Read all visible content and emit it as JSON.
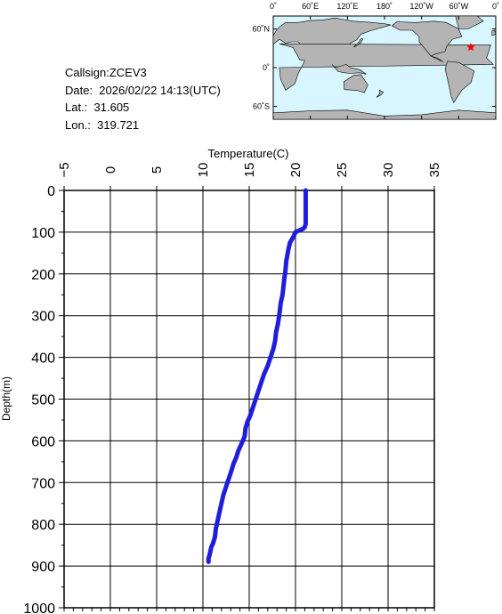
{
  "station": {
    "callsign_line": "Callsign:ZCEV3",
    "date_line": "Date:  2026/02/22 14:13(UTC)",
    "lat_line": "Lat.:  31.605",
    "lon_line": "Lon.:  319.721"
  },
  "map": {
    "lon_labels": [
      "0˚",
      "60˚E",
      "120˚E",
      "180˚",
      "120˚W",
      "60˚W",
      "0˚"
    ],
    "lat_labels": [
      "60˚N",
      "0˚",
      "60˚S"
    ],
    "ocean_color": "#d7f6ff",
    "land_color": "#b4b4b4",
    "marker_color": "#ff0000",
    "marker_lon": 319.721,
    "marker_lat": 31.605
  },
  "chart_data": {
    "type": "line",
    "title": "",
    "xlabel": "Temperature(C)",
    "ylabel": "Depth(m)",
    "xlim": [
      -5,
      35
    ],
    "ylim": [
      0,
      1000
    ],
    "x_ticks": [
      "-5",
      "0",
      "5",
      "10",
      "15",
      "20",
      "25",
      "30",
      "35"
    ],
    "y_ticks": [
      "0",
      "100",
      "200",
      "300",
      "400",
      "500",
      "600",
      "700",
      "800",
      "900",
      "1000"
    ],
    "grid": true,
    "line_color": "#1e1edc",
    "series": [
      {
        "x": [
          21.1,
          21.1,
          21.1,
          21.0,
          20.8,
          20.0,
          19.8,
          19.4,
          19.2,
          19.0,
          18.9,
          18.8,
          18.7,
          18.6,
          18.4,
          18.3,
          18.1,
          17.9,
          17.8,
          17.6,
          17.3,
          17.0,
          16.6,
          16.3,
          16.0,
          15.7,
          15.4,
          15.1,
          14.8,
          14.6,
          14.5,
          14.1,
          13.8,
          13.6,
          13.3,
          13.1,
          12.8,
          12.5,
          12.2,
          12.0,
          11.8,
          11.6,
          11.4,
          11.3,
          11.1,
          10.9,
          10.8,
          10.7,
          10.6,
          10.6
        ],
        "y": [
          0,
          40,
          80,
          88,
          92,
          100,
          110,
          125,
          145,
          170,
          195,
          210,
          230,
          250,
          270,
          290,
          320,
          340,
          360,
          380,
          400,
          420,
          440,
          460,
          480,
          500,
          520,
          540,
          555,
          570,
          590,
          610,
          625,
          640,
          655,
          670,
          690,
          710,
          730,
          750,
          770,
          790,
          810,
          830,
          845,
          855,
          865,
          875,
          882,
          890
        ]
      }
    ]
  }
}
